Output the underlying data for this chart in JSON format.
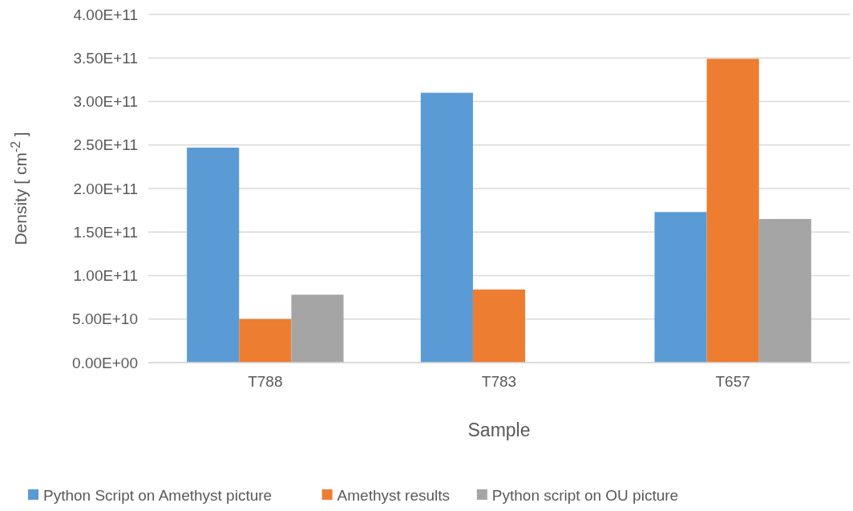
{
  "chart_data": {
    "type": "bar",
    "xlabel": "Sample",
    "ylabel": "Density [ cm$^{-2}$ ]",
    "categories": [
      "T788",
      "T783",
      "T657"
    ],
    "series": [
      {
        "name": "Python Script on Amethyst picture",
        "color": "#5b9bd5",
        "values": [
          247000000000.0,
          310000000000.0,
          173000000000.0
        ]
      },
      {
        "name": "Amethyst results",
        "color": "#ed7d31",
        "values": [
          50000000000.0,
          84000000000.0,
          349000000000.0
        ]
      },
      {
        "name": "Python script on OU picture",
        "color": "#a5a5a5",
        "values": [
          78000000000.0,
          null,
          165000000000.0
        ]
      }
    ],
    "ylim": [
      0,
      400000000000.0
    ],
    "yticks": [
      {
        "value": 0,
        "label": "0.00E+00"
      },
      {
        "value": 50000000000.0,
        "label": "5.00E+10"
      },
      {
        "value": 100000000000.0,
        "label": "1.00E+11"
      },
      {
        "value": 150000000000.0,
        "label": "1.50E+11"
      },
      {
        "value": 200000000000.0,
        "label": "2.00E+11"
      },
      {
        "value": 250000000000.0,
        "label": "2.50E+11"
      },
      {
        "value": 300000000000.0,
        "label": "3.00E+11"
      },
      {
        "value": 350000000000.0,
        "label": "3.50E+11"
      },
      {
        "value": 400000000000.0,
        "label": "4.00E+11"
      }
    ],
    "grid": "y",
    "legend": "bottom"
  }
}
